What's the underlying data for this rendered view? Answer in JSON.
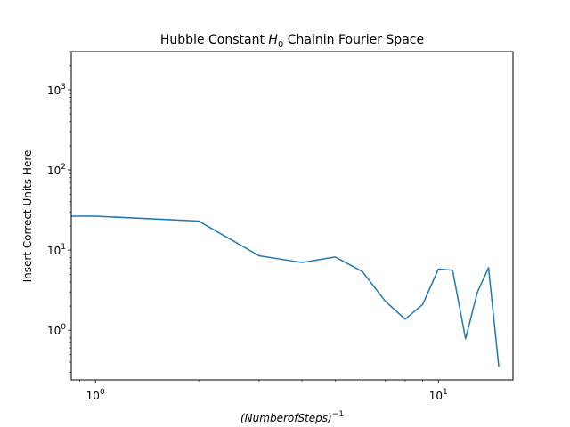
{
  "chart_data": {
    "type": "line",
    "title": {
      "prefix": "Hubble Constant ",
      "symbol": "H",
      "subscript": "0",
      "suffix": " Chainin Fourier Space"
    },
    "xlabel": {
      "var": "(NumberofSteps)",
      "exponent": "−1"
    },
    "ylabel": "Insert Correct Units Here",
    "xscale": "log",
    "yscale": "log",
    "xlim": [
      0.85,
      16.5
    ],
    "ylim": [
      0.24,
      3000
    ],
    "grid": false,
    "x_ticks": [
      {
        "value": 1,
        "base": "10",
        "exp": "0"
      },
      {
        "value": 10,
        "base": "10",
        "exp": "1"
      }
    ],
    "y_ticks": [
      {
        "value": 1,
        "base": "10",
        "exp": "0"
      },
      {
        "value": 10,
        "base": "10",
        "exp": "1"
      },
      {
        "value": 100,
        "base": "10",
        "exp": "2"
      },
      {
        "value": 1000,
        "base": "10",
        "exp": "3"
      }
    ],
    "series": [
      {
        "color": "#1f77b4",
        "x": [
          0.85,
          1,
          2,
          3,
          4,
          5,
          6,
          7,
          8,
          9,
          10,
          11,
          12,
          13,
          14,
          15
        ],
        "y": [
          26.5,
          26.5,
          23.0,
          8.5,
          7.0,
          8.2,
          5.4,
          2.3,
          1.37,
          2.1,
          5.8,
          5.6,
          0.78,
          3.0,
          6.0,
          0.35
        ]
      }
    ]
  }
}
